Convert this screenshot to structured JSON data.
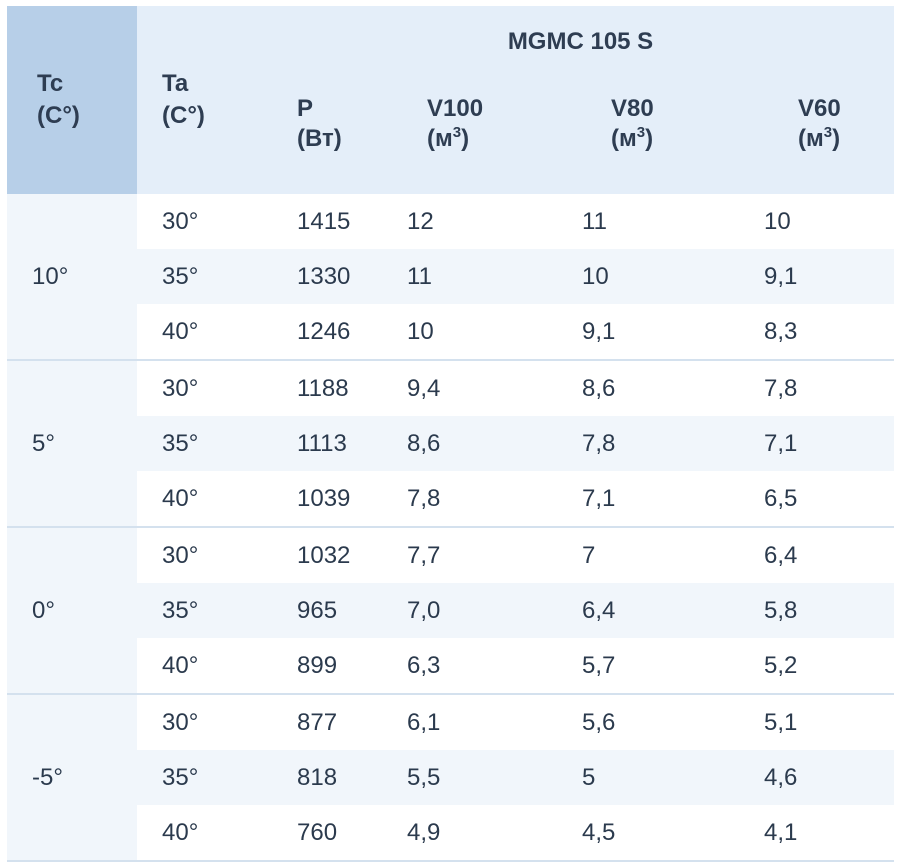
{
  "table": {
    "model": "MGMC 105 S",
    "headers": {
      "tc": {
        "line1": "Tc",
        "line2": "(C°)"
      },
      "ta": {
        "line1": "Ta",
        "line2": "(C°)"
      },
      "p": {
        "line1": "P",
        "line2": "(Вт)"
      },
      "v100": {
        "line1": "V100",
        "unit": "(м",
        "sup": "3",
        "close": ")"
      },
      "v80": {
        "line1": "V80",
        "unit": "(м",
        "sup": "3",
        "close": ")"
      },
      "v60": {
        "line1": "V60",
        "unit": "(м",
        "sup": "3",
        "close": ")"
      }
    },
    "groups": [
      {
        "tc": "10°",
        "rows": [
          {
            "ta": "30°",
            "p": "1415",
            "v100": "12",
            "v80": "11",
            "v60": "10"
          },
          {
            "ta": "35°",
            "p": "1330",
            "v100": "11",
            "v80": "10",
            "v60": "9,1"
          },
          {
            "ta": "40°",
            "p": "1246",
            "v100": "10",
            "v80": "9,1",
            "v60": "8,3"
          }
        ]
      },
      {
        "tc": "5°",
        "rows": [
          {
            "ta": "30°",
            "p": "1188",
            "v100": "9,4",
            "v80": "8,6",
            "v60": "7,8"
          },
          {
            "ta": "35°",
            "p": "1113",
            "v100": "8,6",
            "v80": "7,8",
            "v60": "7,1"
          },
          {
            "ta": "40°",
            "p": "1039",
            "v100": "7,8",
            "v80": "7,1",
            "v60": "6,5"
          }
        ]
      },
      {
        "tc": "0°",
        "rows": [
          {
            "ta": "30°",
            "p": "1032",
            "v100": "7,7",
            "v80": "7",
            "v60": "6,4"
          },
          {
            "ta": "35°",
            "p": "965",
            "v100": "7,0",
            "v80": "6,4",
            "v60": "5,8"
          },
          {
            "ta": "40°",
            "p": "899",
            "v100": "6,3",
            "v80": "5,7",
            "v60": "5,2"
          }
        ]
      },
      {
        "tc": "-5°",
        "rows": [
          {
            "ta": "30°",
            "p": "877",
            "v100": "6,1",
            "v80": "5,6",
            "v60": "5,1"
          },
          {
            "ta": "35°",
            "p": "818",
            "v100": "5,5",
            "v80": "5",
            "v60": "4,6"
          },
          {
            "ta": "40°",
            "p": "760",
            "v100": "4,9",
            "v80": "4,5",
            "v60": "4,1"
          }
        ]
      }
    ]
  },
  "colors": {
    "header_bg": "#e4eef9",
    "tc_header_bg": "#b7cfe8",
    "stripe_bg": "#f1f6fb",
    "text": "#2b3a4d",
    "divider": "#d4e1ee"
  }
}
